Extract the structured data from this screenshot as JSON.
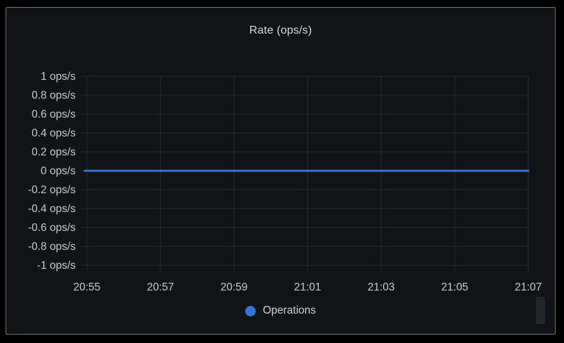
{
  "panel": {
    "title": "Rate (ops/s)"
  },
  "chart_data": {
    "type": "line",
    "title": "Rate (ops/s)",
    "x": [
      "20:55",
      "20:57",
      "20:59",
      "21:01",
      "21:03",
      "21:05",
      "21:07"
    ],
    "x_tick_labels": [
      "20:55",
      "20:57",
      "20:59",
      "21:01",
      "21:03",
      "21:05",
      "21:07"
    ],
    "y_tick_labels": [
      "1 ops/s",
      "0.8 ops/s",
      "0.6 ops/s",
      "0.4 ops/s",
      "0.2 ops/s",
      "0 ops/s",
      "-0.2 ops/s",
      "-0.4 ops/s",
      "-0.6 ops/s",
      "-0.8 ops/s",
      "-1 ops/s"
    ],
    "ylabel": "",
    "xlabel": "",
    "ylim": [
      -1,
      1
    ],
    "y_tick_step": 0.2,
    "grid": true,
    "legend_position": "bottom-center",
    "series": [
      {
        "name": "Operations",
        "color": "#3274d9",
        "values": [
          0,
          0,
          0,
          0,
          0,
          0,
          0
        ]
      }
    ]
  },
  "colors": {
    "page_bg": "#000000",
    "panel_bg": "#121317",
    "panel_border": "#7a7468",
    "grid_line": "#2a2c31",
    "tick_text": "#cacbcc",
    "title_text": "#dadbdc",
    "series_blue": "#3274d9",
    "scrollbar_thumb": "#23262b"
  }
}
